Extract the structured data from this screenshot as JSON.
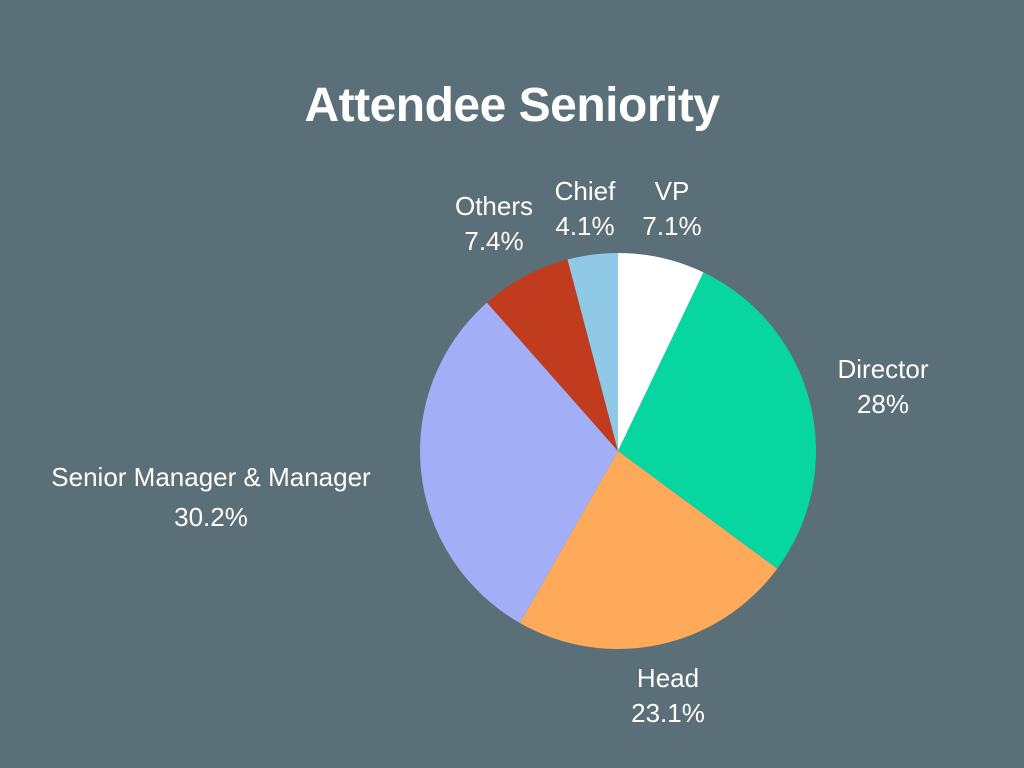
{
  "chart_data": {
    "type": "pie",
    "title": "Attendee Seniority",
    "start_angle_deg": 0,
    "direction": "clockwise",
    "legend": "none",
    "slices": [
      {
        "label": "VP",
        "value": 7.1,
        "value_label": "7.1%",
        "color": "#FFFFFF"
      },
      {
        "label": "Director",
        "value": 28,
        "value_label": "28%",
        "color": "#07D6A0"
      },
      {
        "label": "Head",
        "value": 23.1,
        "value_label": "23.1%",
        "color": "#FFA95B"
      },
      {
        "label": "Senior Manager & Manager",
        "value": 30.2,
        "value_label": "30.2%",
        "color": "#A2AFF6"
      },
      {
        "label": "Others",
        "value": 7.4,
        "value_label": "7.4%",
        "color": "#C13C1E"
      },
      {
        "label": "Chief",
        "value": 4.1,
        "value_label": "4.1%",
        "color": "#8FC9E5"
      }
    ]
  },
  "colors": {
    "background": "#5A6F78",
    "text": "#FFFFFF"
  }
}
